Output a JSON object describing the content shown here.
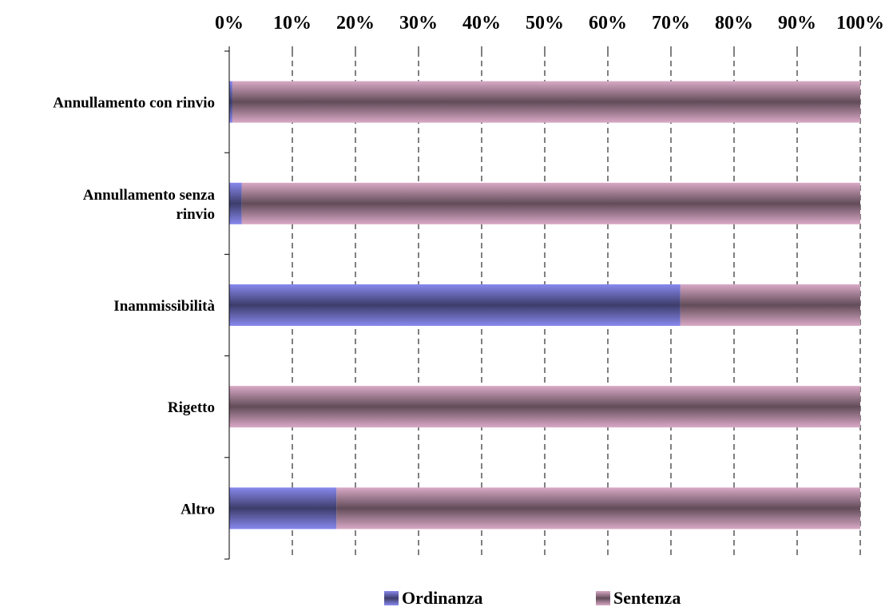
{
  "chart_data": {
    "type": "bar",
    "orientation": "horizontal",
    "stacked": "percent",
    "categories": [
      [
        "Annullamento con rinvio"
      ],
      [
        "Annullamento senza",
        "rinvio"
      ],
      [
        "Inammissibilità"
      ],
      [
        "Rigetto"
      ],
      [
        "Altro"
      ]
    ],
    "series": [
      {
        "name": "Ordinanza",
        "values": [
          0.5,
          2,
          71.5,
          0,
          17
        ],
        "color": "#8888ee"
      },
      {
        "name": "Sentenza",
        "values": [
          99.5,
          98,
          28.5,
          100,
          83
        ],
        "color": "#d9a9c6"
      }
    ],
    "xlim": [
      0,
      100
    ],
    "xticks": [
      "0%",
      "10%",
      "20%",
      "30%",
      "40%",
      "50%",
      "60%",
      "70%",
      "80%",
      "90%",
      "100%"
    ],
    "x_axis_position": "top",
    "grid": "vertical-dashed",
    "legend_position": "bottom"
  }
}
